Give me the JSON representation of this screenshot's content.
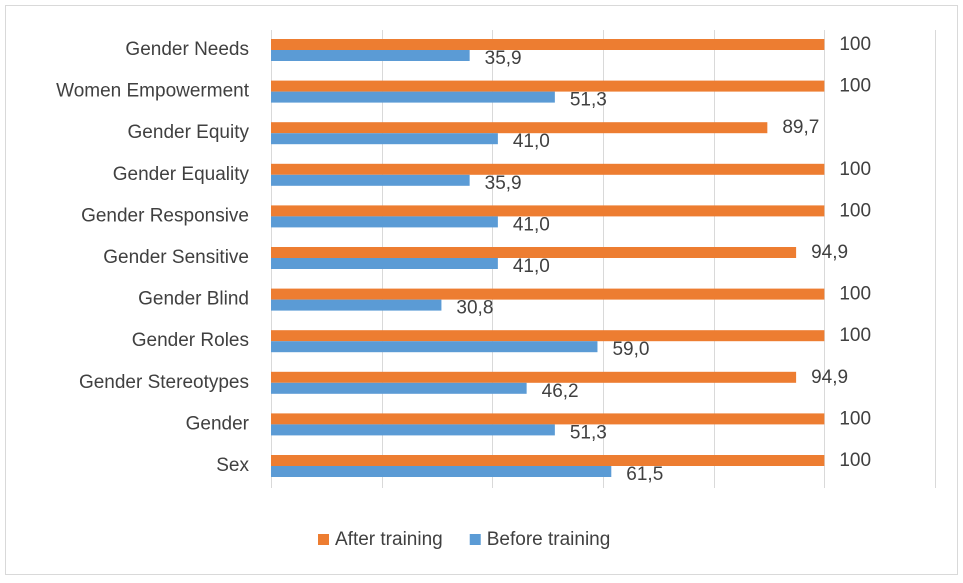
{
  "chart_data": {
    "type": "bar",
    "orientation": "horizontal",
    "categories": [
      "Gender Needs",
      "Women Empowerment",
      "Gender Equity",
      "Gender Equality",
      "Gender Responsive",
      "Gender Sensitive",
      "Gender Blind",
      "Gender Roles",
      "Gender Stereotypes",
      "Gender",
      "Sex"
    ],
    "series": [
      {
        "name": "After training",
        "color": "#ed7d31",
        "values": [
          100,
          100,
          89.7,
          100,
          100,
          94.9,
          100,
          100,
          94.9,
          100,
          100
        ],
        "value_labels": [
          "100",
          "100",
          "89,7",
          "100",
          "100",
          "94,9",
          "100",
          "100",
          "94,9",
          "100",
          "100"
        ]
      },
      {
        "name": "Before training",
        "color": "#5b9bd5",
        "values": [
          35.9,
          51.3,
          41.0,
          35.9,
          41.0,
          41.0,
          30.8,
          59.0,
          46.2,
          51.3,
          61.5
        ],
        "value_labels": [
          "35,9",
          "51,3",
          "41,0",
          "35,9",
          "41,0",
          "41,0",
          "30,8",
          "59,0",
          "46,2",
          "51,3",
          "61,5"
        ]
      }
    ],
    "xlim": [
      0,
      120
    ],
    "xticks": [
      0,
      20,
      40,
      60,
      80,
      100,
      120
    ],
    "grid": true,
    "legend": "bottom"
  }
}
